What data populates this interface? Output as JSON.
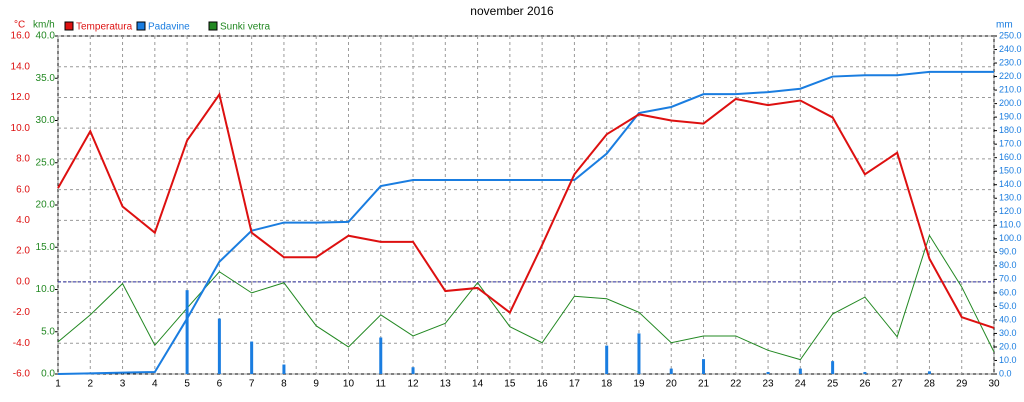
{
  "chart_data": {
    "type": "line",
    "title": "november 2016",
    "y_unit": "°C",
    "y3_unit": "km/h",
    "y2_unit": "mm",
    "x": [
      1,
      2,
      3,
      4,
      5,
      6,
      7,
      8,
      9,
      10,
      11,
      12,
      13,
      14,
      15,
      16,
      17,
      18,
      19,
      20,
      21,
      22,
      23,
      24,
      25,
      26,
      27,
      28,
      29,
      30
    ],
    "xlim": [
      1,
      30
    ],
    "xticks": [
      1,
      2,
      3,
      4,
      5,
      6,
      7,
      8,
      9,
      10,
      11,
      12,
      13,
      14,
      15,
      16,
      17,
      18,
      19,
      20,
      21,
      22,
      23,
      24,
      25,
      26,
      27,
      28,
      29,
      30
    ],
    "ylim": [
      -6,
      16
    ],
    "yticks": [
      {
        "value": -6,
        "label": "-6.0"
      },
      {
        "value": -4,
        "label": "-4.0"
      },
      {
        "value": -2,
        "label": "-2.0"
      },
      {
        "value": 0,
        "label": "0.0"
      },
      {
        "value": 2,
        "label": "2.0"
      },
      {
        "value": 4,
        "label": "4.0"
      },
      {
        "value": 6,
        "label": "6.0"
      },
      {
        "value": 8,
        "label": "8.0"
      },
      {
        "value": 10,
        "label": "10.0"
      },
      {
        "value": 12,
        "label": "12.0"
      },
      {
        "value": 14,
        "label": "14.0"
      },
      {
        "value": 16,
        "label": "16.0"
      }
    ],
    "y3lim": [
      0,
      40
    ],
    "y3ticks": [
      {
        "value": 0,
        "label": "0.0"
      },
      {
        "value": 5,
        "label": "5.0"
      },
      {
        "value": 10,
        "label": "10.0"
      },
      {
        "value": 15,
        "label": "15.0"
      },
      {
        "value": 20,
        "label": "20.0"
      },
      {
        "value": 25,
        "label": "25.0"
      },
      {
        "value": 30,
        "label": "30.0"
      },
      {
        "value": 35,
        "label": "35.0"
      },
      {
        "value": 40,
        "label": "40.0"
      }
    ],
    "y2lim": [
      0,
      250
    ],
    "y2ticks": [
      {
        "value": 0,
        "label": "0.0"
      },
      {
        "value": 10,
        "label": "10.0"
      },
      {
        "value": 20,
        "label": "20.0"
      },
      {
        "value": 30,
        "label": "30.0"
      },
      {
        "value": 40,
        "label": "40.0"
      },
      {
        "value": 50,
        "label": "50.0"
      },
      {
        "value": 60,
        "label": "60.0"
      },
      {
        "value": 70,
        "label": "70.0"
      },
      {
        "value": 80,
        "label": "80.0"
      },
      {
        "value": 90,
        "label": "90.0"
      },
      {
        "value": 100,
        "label": "100.0"
      },
      {
        "value": 110,
        "label": "110.0"
      },
      {
        "value": 120,
        "label": "120.0"
      },
      {
        "value": 130,
        "label": "130.0"
      },
      {
        "value": 140,
        "label": "140.0"
      },
      {
        "value": 150,
        "label": "150.0"
      },
      {
        "value": 160,
        "label": "160.0"
      },
      {
        "value": 170,
        "label": "170.0"
      },
      {
        "value": 180,
        "label": "180.0"
      },
      {
        "value": 190,
        "label": "190.0"
      },
      {
        "value": 200,
        "label": "200.0"
      },
      {
        "value": 210,
        "label": "210.0"
      },
      {
        "value": 220,
        "label": "220.0"
      },
      {
        "value": 230,
        "label": "230.0"
      },
      {
        "value": 240,
        "label": "240.0"
      },
      {
        "value": 250,
        "label": "250.0"
      }
    ],
    "grid": true,
    "zero_line": true,
    "series": [
      {
        "name": "Temperatura",
        "color": "#dd1010",
        "axis": "y",
        "values": [
          6.1,
          9.8,
          4.9,
          3.2,
          9.2,
          12.2,
          3.2,
          1.6,
          1.6,
          3.0,
          2.6,
          2.6,
          -0.6,
          -0.4,
          -2.0,
          2.4,
          7.0,
          9.6,
          10.9,
          10.5,
          10.3,
          11.9,
          11.5,
          11.8,
          10.7,
          7.0,
          8.4,
          1.5,
          -2.3,
          -3.0
        ]
      },
      {
        "name": "Padavine",
        "color": "#1a7de0",
        "axis": "y2",
        "values": [
          0,
          0.5,
          1,
          1.5,
          41,
          83,
          106,
          112,
          112,
          112.5,
          139,
          143.5,
          143.5,
          143.5,
          143.5,
          143.5,
          143.5,
          163,
          193,
          197.5,
          207,
          207,
          208.5,
          211,
          220,
          221,
          221,
          223.5,
          223.5,
          223.5
        ],
        "bars": [
          0,
          0,
          0,
          0,
          62,
          41,
          24,
          7,
          0,
          0,
          27,
          5,
          0,
          0,
          0,
          0,
          0,
          21,
          30,
          4,
          11,
          0,
          1.5,
          4,
          9.5,
          1.5,
          0,
          2,
          0,
          0
        ]
      },
      {
        "name": "Sunki vetra",
        "color": "#228822",
        "axis": "y3",
        "values": [
          3.8,
          7.0,
          10.7,
          3.4,
          7.8,
          12.1,
          9.6,
          10.8,
          5.7,
          3.2,
          7.0,
          4.5,
          6.0,
          10.8,
          5.6,
          3.7,
          9.2,
          8.9,
          7.3,
          3.7,
          4.5,
          4.5,
          2.8,
          1.7,
          7.1,
          9.1,
          4.4,
          16.4,
          10.3,
          2.6
        ]
      }
    ]
  }
}
